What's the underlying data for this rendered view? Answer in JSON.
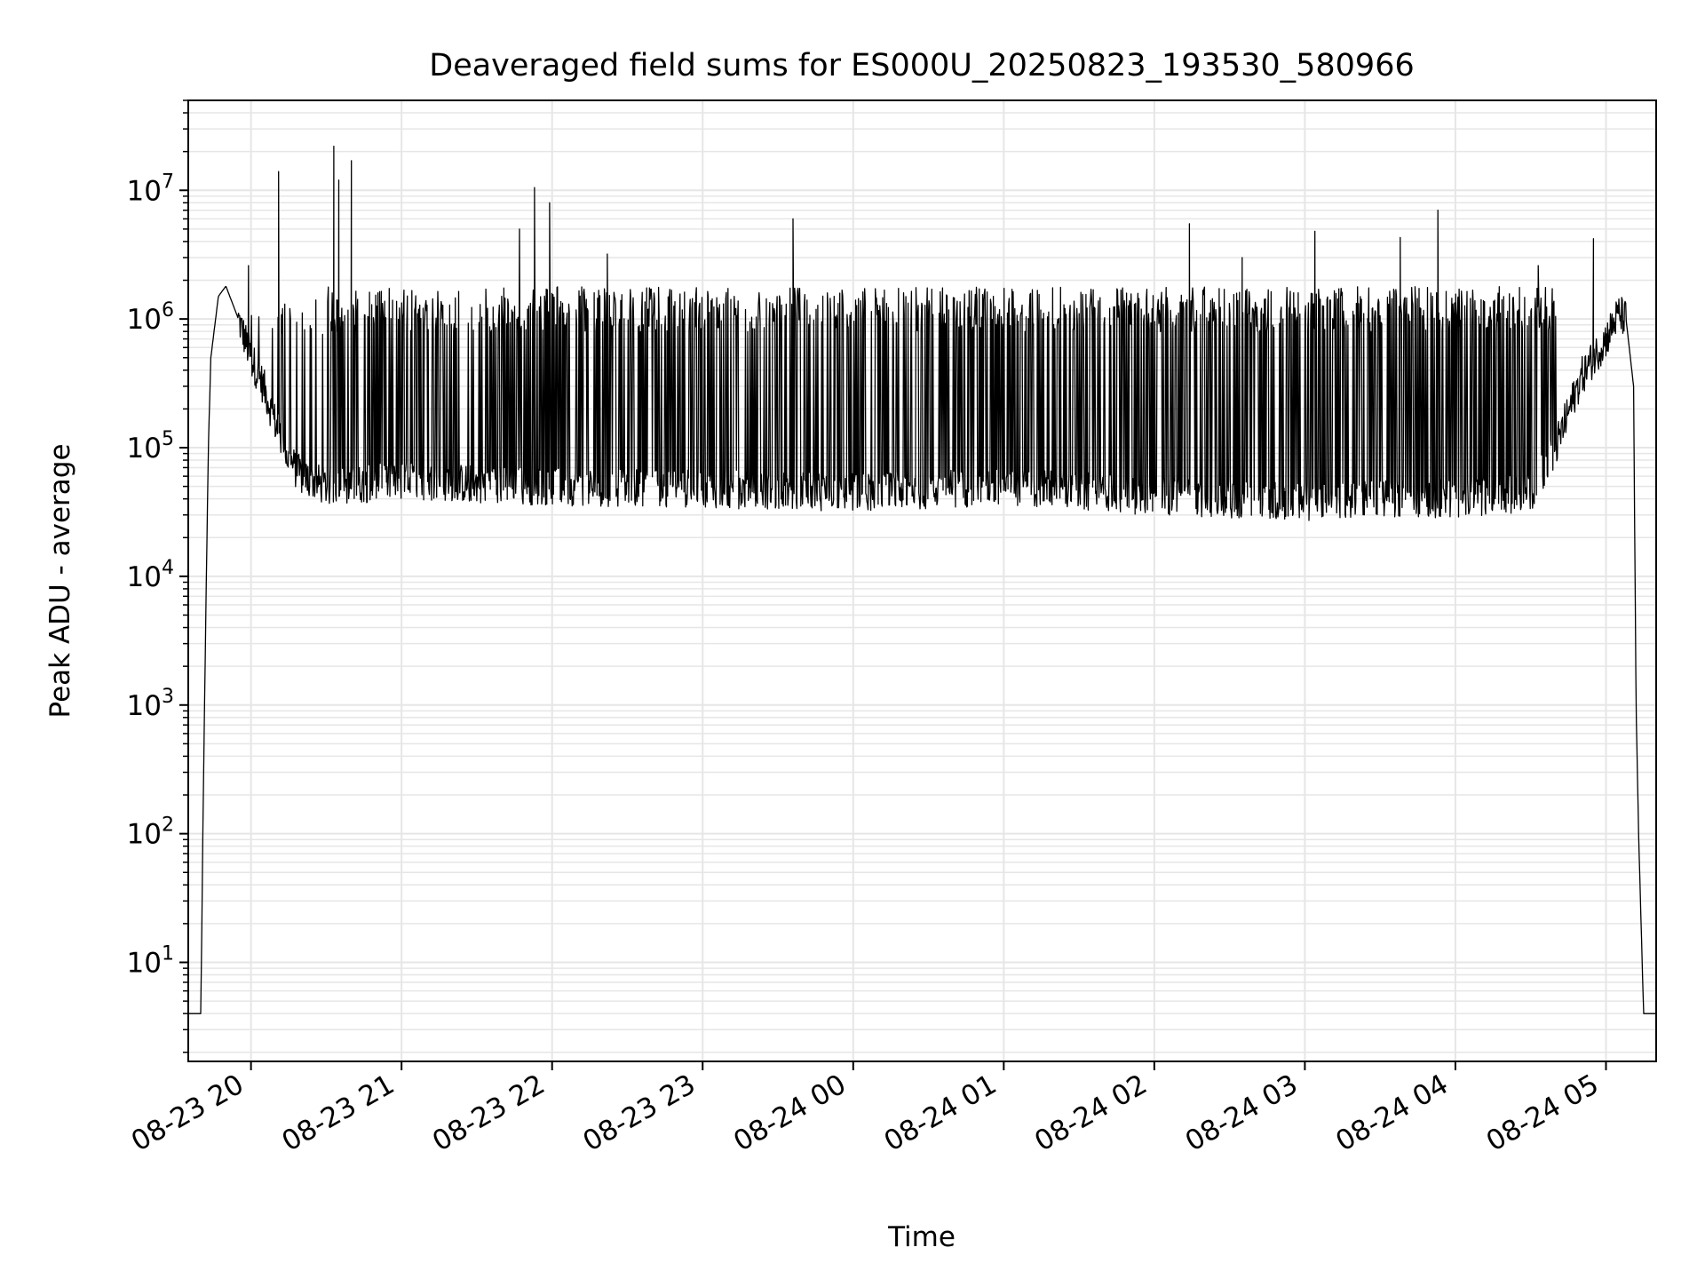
{
  "chart_data": {
    "type": "line",
    "title": "Deaveraged field sums for ES000U_20250823_193530_580966",
    "xlabel": "Time",
    "ylabel": "Peak ADU - average",
    "yscale": "log",
    "xlim": [
      "2025-08-23 19:35",
      "2025-08-24 05:20"
    ],
    "ylim": [
      1.7,
      50000000
    ],
    "grid": true,
    "line_color": "#000000",
    "grid_color": "#e6e6e6",
    "x_ticks": [
      "08-23 20",
      "08-23 21",
      "08-23 22",
      "08-23 23",
      "08-24 00",
      "08-24 01",
      "08-24 02",
      "08-24 03",
      "08-24 04",
      "08-24 05"
    ],
    "y_ticks": [
      {
        "base": "10",
        "exp": "1",
        "value": 10
      },
      {
        "base": "10",
        "exp": "2",
        "value": 100
      },
      {
        "base": "10",
        "exp": "3",
        "value": 1000
      },
      {
        "base": "10",
        "exp": "4",
        "value": 10000
      },
      {
        "base": "10",
        "exp": "5",
        "value": 100000
      },
      {
        "base": "10",
        "exp": "6",
        "value": 1000000
      },
      {
        "base": "10",
        "exp": "7",
        "value": 10000000
      }
    ],
    "series": [
      {
        "points": [
          [
            "2025-08-23 19:35",
            4
          ],
          [
            "2025-08-23 19:40",
            4
          ],
          [
            "2025-08-23 19:41",
            200
          ],
          [
            "2025-08-23 19:42",
            5000
          ],
          [
            "2025-08-23 19:43",
            100000
          ],
          [
            "2025-08-23 19:44",
            500000
          ],
          [
            "2025-08-23 19:47",
            1500000
          ],
          [
            "2025-08-23 19:50",
            1800000
          ],
          [
            "2025-08-23 19:55",
            1000000
          ],
          [
            "2025-08-23 20:00",
            500000
          ],
          [
            "2025-08-23 20:05",
            300000
          ],
          [
            "2025-08-23 20:10",
            150000
          ],
          [
            "2025-08-23 20:15",
            80000
          ],
          [
            "2025-08-23 20:20",
            60000
          ],
          [
            "2025-08-23 20:30",
            50000
          ],
          [
            "2025-08-23 21:00",
            55000
          ],
          [
            "2025-08-23 22:00",
            50000
          ],
          [
            "2025-08-23 23:00",
            48000
          ],
          [
            "2025-08-24 00:00",
            45000
          ],
          [
            "2025-08-24 01:00",
            50000
          ],
          [
            "2025-08-24 02:00",
            42000
          ],
          [
            "2025-08-24 02:30",
            40000
          ],
          [
            "2025-08-24 03:00",
            38000
          ],
          [
            "2025-08-24 03:30",
            40000
          ],
          [
            "2025-08-24 04:00",
            40000
          ],
          [
            "2025-08-24 04:30",
            45000
          ],
          [
            "2025-08-24 04:40",
            100000
          ],
          [
            "2025-08-24 04:50",
            350000
          ],
          [
            "2025-08-24 05:00",
            700000
          ],
          [
            "2025-08-24 05:05",
            1100000
          ],
          [
            "2025-08-24 05:08",
            1000000
          ],
          [
            "2025-08-24 05:11",
            300000
          ],
          [
            "2025-08-24 05:12",
            1000
          ],
          [
            "2025-08-24 05:13",
            100
          ],
          [
            "2025-08-24 05:15",
            4
          ],
          [
            "2025-08-24 05:20",
            4
          ]
        ],
        "spikes": [
          [
            "2025-08-23 19:59",
            2600000
          ],
          [
            "2025-08-23 20:11",
            14000000
          ],
          [
            "2025-08-23 20:33",
            22000000
          ],
          [
            "2025-08-23 20:35",
            12000000
          ],
          [
            "2025-08-23 20:40",
            17000000
          ],
          [
            "2025-08-23 21:47",
            5000000
          ],
          [
            "2025-08-23 21:53",
            10500000
          ],
          [
            "2025-08-23 21:59",
            8000000
          ],
          [
            "2025-08-23 22:22",
            3200000
          ],
          [
            "2025-08-23 23:36",
            6000000
          ],
          [
            "2025-08-24 02:14",
            5500000
          ],
          [
            "2025-08-24 02:35",
            3000000
          ],
          [
            "2025-08-24 03:04",
            4800000
          ],
          [
            "2025-08-24 03:38",
            4300000
          ],
          [
            "2025-08-24 03:53",
            7000000
          ],
          [
            "2025-08-24 04:33",
            2600000
          ],
          [
            "2025-08-24 04:55",
            4200000
          ]
        ],
        "envelope": {
          "active_from": "2025-08-23 20:30",
          "active_to": "2025-08-24 04:40",
          "upper": 1400000,
          "lower": 40000
        }
      }
    ]
  }
}
